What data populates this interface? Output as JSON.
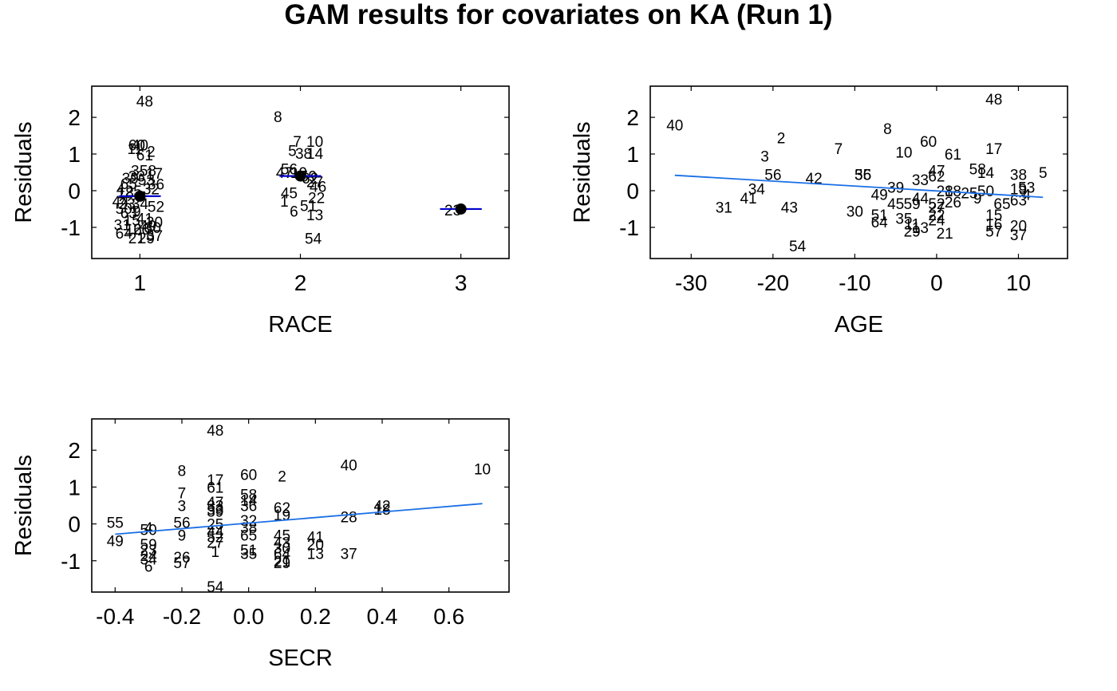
{
  "title": "GAM results for covariates on KA (Run 1)",
  "colors": {
    "line": "#1a6fe6",
    "mean_line": "#0000cc",
    "text": "#000000",
    "marker": "#000000"
  },
  "chart_data": [
    {
      "type": "scatter",
      "subtype": "categorical-residuals",
      "xlabel": "RACE",
      "ylabel": "Residuals",
      "xlim": [
        0.7,
        3.3
      ],
      "ylim": [
        -1.85,
        2.85
      ],
      "xticks": [
        1,
        2,
        3
      ],
      "yticks": [
        -1,
        0,
        1,
        2
      ],
      "category_means": [
        {
          "x": 1,
          "y": -0.15
        },
        {
          "x": 2,
          "y": 0.4
        },
        {
          "x": 3,
          "y": -0.5
        }
      ],
      "points": [
        {
          "label": "48",
          "x": 1.03,
          "y": 2.45
        },
        {
          "label": "60",
          "x": 0.98,
          "y": 1.25
        },
        {
          "label": "40",
          "x": 1.0,
          "y": 1.25
        },
        {
          "label": "11",
          "x": 0.97,
          "y": 1.15
        },
        {
          "label": "2",
          "x": 1.07,
          "y": 1.08
        },
        {
          "label": "61",
          "x": 1.03,
          "y": 0.98
        },
        {
          "label": "3",
          "x": 0.97,
          "y": 0.55
        },
        {
          "label": "58",
          "x": 1.05,
          "y": 0.55
        },
        {
          "label": "17",
          "x": 1.09,
          "y": 0.48
        },
        {
          "label": "39",
          "x": 0.94,
          "y": 0.35
        },
        {
          "label": "33",
          "x": 0.98,
          "y": 0.4
        },
        {
          "label": "53",
          "x": 1.04,
          "y": 0.3
        },
        {
          "label": "36",
          "x": 1.1,
          "y": 0.18
        },
        {
          "label": "65",
          "x": 0.93,
          "y": 0.2
        },
        {
          "label": "4",
          "x": 0.88,
          "y": 0.05
        },
        {
          "label": "18",
          "x": 0.91,
          "y": -0.05
        },
        {
          "label": "25",
          "x": 0.96,
          "y": 0.0
        },
        {
          "label": "32",
          "x": 1.07,
          "y": 0.05
        },
        {
          "label": "44",
          "x": 0.88,
          "y": -0.28
        },
        {
          "label": "23",
          "x": 0.92,
          "y": -0.35
        },
        {
          "label": "34",
          "x": 1.0,
          "y": -0.35
        },
        {
          "label": "50",
          "x": 0.9,
          "y": -0.48
        },
        {
          "label": "52",
          "x": 1.1,
          "y": -0.42
        },
        {
          "label": "63",
          "x": 0.93,
          "y": -0.6
        },
        {
          "label": "9",
          "x": 0.98,
          "y": -0.55
        },
        {
          "label": "31",
          "x": 0.89,
          "y": -0.92
        },
        {
          "label": "15",
          "x": 0.95,
          "y": -0.8
        },
        {
          "label": "41",
          "x": 1.03,
          "y": -0.75
        },
        {
          "label": "20",
          "x": 1.09,
          "y": -0.85
        },
        {
          "label": "49",
          "x": 1.05,
          "y": -0.95
        },
        {
          "label": "64",
          "x": 0.9,
          "y": -1.15
        },
        {
          "label": "16",
          "x": 0.96,
          "y": -1.05
        },
        {
          "label": "26",
          "x": 1.01,
          "y": -1.05
        },
        {
          "label": "30",
          "x": 1.08,
          "y": -1.0
        },
        {
          "label": "21",
          "x": 0.98,
          "y": -1.28
        },
        {
          "label": "29",
          "x": 1.04,
          "y": -1.28
        },
        {
          "label": "37",
          "x": 1.09,
          "y": -1.22
        },
        {
          "label": "8",
          "x": 1.86,
          "y": 2.02
        },
        {
          "label": "7",
          "x": 1.98,
          "y": 1.35
        },
        {
          "label": "10",
          "x": 2.09,
          "y": 1.35
        },
        {
          "label": "5",
          "x": 1.95,
          "y": 1.1
        },
        {
          "label": "38",
          "x": 2.02,
          "y": 1.02
        },
        {
          "label": "14",
          "x": 2.09,
          "y": 1.02
        },
        {
          "label": "56",
          "x": 1.93,
          "y": 0.6
        },
        {
          "label": "47",
          "x": 1.9,
          "y": 0.5
        },
        {
          "label": "19",
          "x": 1.99,
          "y": 0.5
        },
        {
          "label": "59",
          "x": 2.05,
          "y": 0.4
        },
        {
          "label": "62",
          "x": 2.06,
          "y": 0.35
        },
        {
          "label": "27",
          "x": 2.09,
          "y": 0.25
        },
        {
          "label": "46",
          "x": 2.11,
          "y": 0.12
        },
        {
          "label": "45",
          "x": 1.93,
          "y": -0.05
        },
        {
          "label": "22",
          "x": 2.1,
          "y": -0.18
        },
        {
          "label": "1",
          "x": 1.9,
          "y": -0.28
        },
        {
          "label": "51",
          "x": 2.05,
          "y": -0.4
        },
        {
          "label": "6",
          "x": 1.96,
          "y": -0.55
        },
        {
          "label": "13",
          "x": 2.09,
          "y": -0.65
        },
        {
          "label": "54",
          "x": 2.08,
          "y": -1.3
        },
        {
          "label": "23",
          "x": 2.95,
          "y": -0.52
        }
      ]
    },
    {
      "type": "scatter",
      "subtype": "continuous-residuals",
      "xlabel": "AGE",
      "ylabel": "Residuals",
      "xlim": [
        -35,
        16
      ],
      "ylim": [
        -1.85,
        2.85
      ],
      "xticks": [
        -30,
        -20,
        -10,
        0,
        10
      ],
      "yticks": [
        -1,
        0,
        1,
        2
      ],
      "fit_line": {
        "x": [
          -32,
          13
        ],
        "y": [
          0.42,
          -0.18
        ]
      },
      "points": [
        {
          "label": "48",
          "x": 7,
          "y": 2.5
        },
        {
          "label": "40",
          "x": -32,
          "y": 1.8
        },
        {
          "label": "2",
          "x": -19,
          "y": 1.45
        },
        {
          "label": "8",
          "x": -6,
          "y": 1.7
        },
        {
          "label": "60",
          "x": -1,
          "y": 1.35
        },
        {
          "label": "7",
          "x": -12,
          "y": 1.15
        },
        {
          "label": "17",
          "x": 7,
          "y": 1.15
        },
        {
          "label": "10",
          "x": -4,
          "y": 1.05
        },
        {
          "label": "61",
          "x": 2,
          "y": 1.0
        },
        {
          "label": "3",
          "x": -21,
          "y": 0.95
        },
        {
          "label": "58",
          "x": 5,
          "y": 0.6
        },
        {
          "label": "56",
          "x": -20,
          "y": 0.45
        },
        {
          "label": "55",
          "x": -9,
          "y": 0.45
        },
        {
          "label": "36",
          "x": -9,
          "y": 0.45
        },
        {
          "label": "47",
          "x": 0,
          "y": 0.55
        },
        {
          "label": "14",
          "x": 6,
          "y": 0.5
        },
        {
          "label": "38",
          "x": 10,
          "y": 0.45
        },
        {
          "label": "5",
          "x": 13,
          "y": 0.5
        },
        {
          "label": "42",
          "x": -15,
          "y": 0.35
        },
        {
          "label": "33",
          "x": -2,
          "y": 0.3
        },
        {
          "label": "62",
          "x": 0,
          "y": 0.4
        },
        {
          "label": "34",
          "x": -22,
          "y": 0.05
        },
        {
          "label": "39",
          "x": -5,
          "y": 0.1
        },
        {
          "label": "19",
          "x": 10,
          "y": 0.05
        },
        {
          "label": "53",
          "x": 11,
          "y": 0.1
        },
        {
          "label": "41",
          "x": -23,
          "y": -0.2
        },
        {
          "label": "49",
          "x": -7,
          "y": -0.1
        },
        {
          "label": "44",
          "x": -2,
          "y": -0.2
        },
        {
          "label": "28",
          "x": 1,
          "y": 0.0
        },
        {
          "label": "18",
          "x": 2,
          "y": 0.0
        },
        {
          "label": "25",
          "x": 4,
          "y": -0.05
        },
        {
          "label": "50",
          "x": 6,
          "y": 0.0
        },
        {
          "label": "4",
          "x": 11,
          "y": -0.1
        },
        {
          "label": "31",
          "x": -26,
          "y": -0.45
        },
        {
          "label": "43",
          "x": -18,
          "y": -0.45
        },
        {
          "label": "45",
          "x": -5,
          "y": -0.35
        },
        {
          "label": "59",
          "x": -3,
          "y": -0.35
        },
        {
          "label": "52",
          "x": 0,
          "y": -0.35
        },
        {
          "label": "26",
          "x": 2,
          "y": -0.3
        },
        {
          "label": "9",
          "x": 5,
          "y": -0.2
        },
        {
          "label": "65",
          "x": 8,
          "y": -0.35
        },
        {
          "label": "63",
          "x": 10,
          "y": -0.25
        },
        {
          "label": "30",
          "x": -10,
          "y": -0.55
        },
        {
          "label": "27",
          "x": 0,
          "y": -0.45
        },
        {
          "label": "51",
          "x": -7,
          "y": -0.65
        },
        {
          "label": "35",
          "x": -4,
          "y": -0.75
        },
        {
          "label": "22",
          "x": 0,
          "y": -0.65
        },
        {
          "label": "15",
          "x": 7,
          "y": -0.65
        },
        {
          "label": "64",
          "x": -7,
          "y": -0.85
        },
        {
          "label": "11",
          "x": -3,
          "y": -0.9
        },
        {
          "label": "24",
          "x": 0,
          "y": -0.8
        },
        {
          "label": "20",
          "x": 10,
          "y": -0.95
        },
        {
          "label": "16",
          "x": 7,
          "y": -0.9
        },
        {
          "label": "29",
          "x": -3,
          "y": -1.1
        },
        {
          "label": "13",
          "x": -2,
          "y": -1.0
        },
        {
          "label": "21",
          "x": 1,
          "y": -1.15
        },
        {
          "label": "57",
          "x": 7,
          "y": -1.1
        },
        {
          "label": "37",
          "x": 10,
          "y": -1.2
        },
        {
          "label": "54",
          "x": -17,
          "y": -1.5
        }
      ]
    },
    {
      "type": "scatter",
      "subtype": "continuous-residuals",
      "xlabel": "SECR",
      "ylabel": "Residuals",
      "xlim": [
        -0.47,
        0.78
      ],
      "ylim": [
        -1.85,
        2.85
      ],
      "xticks": [
        -0.4,
        -0.2,
        0.0,
        0.2,
        0.4,
        0.6
      ],
      "xtick_labels": [
        "-0.4",
        "-0.2",
        "0.0",
        "0.2",
        "0.4",
        "0.6"
      ],
      "yticks": [
        -1,
        0,
        1,
        2
      ],
      "fit_line": {
        "x": [
          -0.4,
          0.7
        ],
        "y": [
          -0.28,
          0.55
        ]
      },
      "points": [
        {
          "label": "48",
          "x": -0.1,
          "y": 2.55
        },
        {
          "label": "8",
          "x": -0.2,
          "y": 1.45
        },
        {
          "label": "40",
          "x": 0.3,
          "y": 1.6
        },
        {
          "label": "10",
          "x": 0.7,
          "y": 1.5
        },
        {
          "label": "60",
          "x": 0.0,
          "y": 1.35
        },
        {
          "label": "2",
          "x": 0.1,
          "y": 1.3
        },
        {
          "label": "17",
          "x": -0.1,
          "y": 1.2
        },
        {
          "label": "61",
          "x": -0.1,
          "y": 1.0
        },
        {
          "label": "7",
          "x": -0.2,
          "y": 0.85
        },
        {
          "label": "58",
          "x": 0.0,
          "y": 0.8
        },
        {
          "label": "14",
          "x": 0.0,
          "y": 0.65
        },
        {
          "label": "47",
          "x": -0.1,
          "y": 0.6
        },
        {
          "label": "3",
          "x": -0.2,
          "y": 0.5
        },
        {
          "label": "42",
          "x": 0.4,
          "y": 0.5
        },
        {
          "label": "18",
          "x": 0.4,
          "y": 0.4
        },
        {
          "label": "62",
          "x": 0.1,
          "y": 0.45
        },
        {
          "label": "33",
          "x": -0.1,
          "y": 0.5
        },
        {
          "label": "36",
          "x": 0.0,
          "y": 0.5
        },
        {
          "label": "19",
          "x": 0.1,
          "y": 0.25
        },
        {
          "label": "53",
          "x": -0.1,
          "y": 0.4
        },
        {
          "label": "39",
          "x": -0.1,
          "y": 0.35
        },
        {
          "label": "56",
          "x": -0.2,
          "y": 0.05
        },
        {
          "label": "28",
          "x": 0.3,
          "y": 0.2
        },
        {
          "label": "55",
          "x": -0.4,
          "y": 0.05
        },
        {
          "label": "4",
          "x": -0.3,
          "y": -0.1
        },
        {
          "label": "50",
          "x": -0.3,
          "y": -0.15
        },
        {
          "label": "25",
          "x": -0.1,
          "y": 0.0
        },
        {
          "label": "32",
          "x": 0.0,
          "y": 0.1
        },
        {
          "label": "38",
          "x": 0.0,
          "y": -0.1
        },
        {
          "label": "9",
          "x": -0.2,
          "y": -0.3
        },
        {
          "label": "44",
          "x": -0.1,
          "y": -0.2
        },
        {
          "label": "52",
          "x": -0.1,
          "y": -0.35
        },
        {
          "label": "65",
          "x": 0.0,
          "y": -0.3
        },
        {
          "label": "45",
          "x": 0.1,
          "y": -0.3
        },
        {
          "label": "41",
          "x": 0.2,
          "y": -0.35
        },
        {
          "label": "49",
          "x": -0.4,
          "y": -0.45
        },
        {
          "label": "27",
          "x": -0.1,
          "y": -0.5
        },
        {
          "label": "43",
          "x": 0.1,
          "y": -0.5
        },
        {
          "label": "30",
          "x": 0.1,
          "y": -0.65
        },
        {
          "label": "20",
          "x": 0.2,
          "y": -0.55
        },
        {
          "label": "59",
          "x": -0.3,
          "y": -0.55
        },
        {
          "label": "23",
          "x": -0.3,
          "y": -0.7
        },
        {
          "label": "1",
          "x": -0.1,
          "y": -0.75
        },
        {
          "label": "51",
          "x": 0.0,
          "y": -0.7
        },
        {
          "label": "35",
          "x": 0.0,
          "y": -0.8
        },
        {
          "label": "13",
          "x": 0.2,
          "y": -0.8
        },
        {
          "label": "37",
          "x": 0.3,
          "y": -0.8
        },
        {
          "label": "24",
          "x": -0.3,
          "y": -0.85
        },
        {
          "label": "34",
          "x": -0.3,
          "y": -0.95
        },
        {
          "label": "26",
          "x": -0.2,
          "y": -0.9
        },
        {
          "label": "64",
          "x": 0.1,
          "y": -0.8
        },
        {
          "label": "57",
          "x": -0.2,
          "y": -1.05
        },
        {
          "label": "21",
          "x": 0.1,
          "y": -1.0
        },
        {
          "label": "29",
          "x": 0.1,
          "y": -1.05
        },
        {
          "label": "6",
          "x": -0.3,
          "y": -1.15
        },
        {
          "label": "54",
          "x": -0.1,
          "y": -1.7
        }
      ]
    }
  ]
}
